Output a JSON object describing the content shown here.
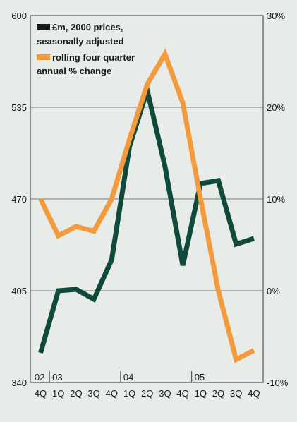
{
  "chart_data": {
    "type": "line",
    "title": "",
    "xlabel": "",
    "ylabel": "",
    "categories": [
      "4Q",
      "1Q",
      "2Q",
      "3Q",
      "4Q",
      "1Q",
      "2Q",
      "3Q",
      "4Q",
      "1Q",
      "2Q",
      "3Q",
      "4Q"
    ],
    "year_labels": [
      {
        "label": "02",
        "start": 0
      },
      {
        "label": "03",
        "start": 1
      },
      {
        "label": "04",
        "start": 5
      },
      {
        "label": "05",
        "start": 9
      }
    ],
    "left_axis": {
      "ylim": [
        340,
        600
      ],
      "ticks": [
        "340",
        "405",
        "470",
        "535",
        "600"
      ]
    },
    "right_axis": {
      "ylim": [
        -10,
        30
      ],
      "ticks": [
        "-10%",
        "0%",
        "10%",
        "20%",
        "30%"
      ]
    },
    "series": [
      {
        "name": "£m, 2000 prices, seasonally adjusted",
        "axis": "left",
        "color": "#0f4a3c",
        "values": [
          361,
          405,
          406,
          399,
          427,
          507,
          547,
          493,
          423,
          481,
          483,
          438,
          442
        ]
      },
      {
        "name": "rolling four quarter annual % change",
        "axis": "right",
        "color": "#f39a3c",
        "values": [
          10,
          6,
          7,
          6.5,
          10,
          16.5,
          22.5,
          25.8,
          20.5,
          10,
          0,
          -7.5,
          -6.5
        ]
      }
    ]
  }
}
